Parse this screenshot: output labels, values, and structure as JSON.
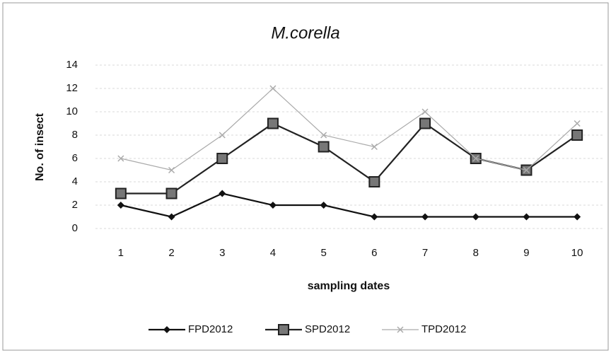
{
  "chart_data": {
    "type": "line",
    "title": "M.corella",
    "x_label": "sampling dates",
    "y_label": "No. of insect",
    "categories": [
      "1",
      "2",
      "3",
      "4",
      "5",
      "6",
      "7",
      "8",
      "9",
      "10"
    ],
    "series": [
      {
        "name": "FPD2012",
        "color": "#111111",
        "marker": "diamond",
        "values": [
          2,
          1,
          3,
          2,
          2,
          1,
          1,
          1,
          1,
          1
        ]
      },
      {
        "name": "SPD2012",
        "color": "#222222",
        "marker": "square",
        "values": [
          3,
          3,
          6,
          9,
          7,
          4,
          9,
          6,
          5,
          8
        ]
      },
      {
        "name": "TPD2012",
        "color": "#aaaaaa",
        "marker": "cross",
        "values": [
          6,
          5,
          8,
          12,
          8,
          7,
          10,
          6,
          5,
          9
        ]
      }
    ],
    "ylim": [
      0,
      14
    ],
    "yticks": [
      0,
      2,
      4,
      6,
      8,
      10,
      12,
      14
    ],
    "grid": true,
    "legend": "bottom"
  }
}
